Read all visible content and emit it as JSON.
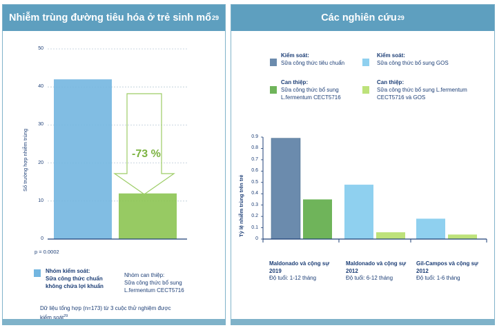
{
  "left_panel": {
    "title": "Nhiễm trùng đường tiêu hóa ở trẻ sinh mổ",
    "title_ref": "29",
    "y_axis_label": "Số trường hợp nhiễm trùng",
    "reduction_label": "-73 %",
    "p_value": "p = 0.0002",
    "legend": {
      "control_title": "Nhóm kiểm soát:",
      "control_desc": "Sữa công thức chuẩn không chứa lợi khuẩn",
      "intervention_title": "Nhóm can thiệp:",
      "intervention_desc": "Sữa công thức bổ sung L.fermentum CECT5716"
    },
    "footnote": "Dữ liệu tổng hợp (n=173) từ 3 cuộc thử nghiệm được kiểm soát",
    "footnote_ref": "29"
  },
  "right_panel": {
    "title": "Các nghiên cứu",
    "title_ref": "29",
    "y_axis_label": "Tỷ lệ nhiễm trùng trên trẻ",
    "legend": [
      {
        "title": "Kiểm soát:",
        "desc": "Sữa công thức tiêu chuẩn",
        "color": "#6b8bad"
      },
      {
        "title": "Kiểm soát:",
        "desc": "Sữa công thức bổ sung GOS",
        "color": "#8fd0ef"
      },
      {
        "title": "Can thiệp:",
        "desc": "Sữa công thức bổ sung L.fermentum CECT5716",
        "color": "#6fb45a"
      },
      {
        "title": "Can thiệp:",
        "desc": "Sữa công thức bổ sung L.fermentum CECT5716 và GOS",
        "color": "#bde27a"
      }
    ],
    "groups": [
      {
        "study": "Maldonado và cộng sự 2019",
        "age": "Độ tuổi: 1-12 tháng"
      },
      {
        "study": "Maldonado và cộng sự 2012",
        "age": "Độ tuổi: 6-12 tháng"
      },
      {
        "study": "Gil-Campos và cộng sự 2012",
        "age": "Độ tuổi: 1-6 tháng"
      }
    ]
  },
  "chart_data": [
    {
      "type": "bar",
      "title": "Nhiễm trùng đường tiêu hóa ở trẻ sinh mổ",
      "ylabel": "Số trường hợp nhiễm trùng",
      "categories": [
        "Nhóm kiểm soát",
        "Nhóm can thiệp"
      ],
      "values": [
        42,
        12
      ],
      "colors": [
        "#73b6e0",
        "#8cc452"
      ],
      "ylim": [
        0,
        50
      ],
      "yticks": [
        0,
        10,
        20,
        30,
        40,
        50
      ],
      "annotation": "-73 %",
      "grid": true
    },
    {
      "type": "bar",
      "title": "Các nghiên cứu",
      "ylabel": "Tỷ lệ nhiễm trùng trên trẻ",
      "categories": [
        "Maldonado và cộng sự 2019",
        "Maldonado và cộng sự 2012",
        "Gil-Campos và cộng sự 2012"
      ],
      "bars": [
        {
          "group": 0,
          "series": 0,
          "value": 0.89,
          "color": "#6b8bad"
        },
        {
          "group": 0,
          "series": 2,
          "value": 0.35,
          "color": "#6fb45a"
        },
        {
          "group": 1,
          "series": 1,
          "value": 0.48,
          "color": "#8fd0ef"
        },
        {
          "group": 1,
          "series": 3,
          "value": 0.06,
          "color": "#bde27a"
        },
        {
          "group": 2,
          "series": 1,
          "value": 0.18,
          "color": "#8fd0ef"
        },
        {
          "group": 2,
          "series": 3,
          "value": 0.04,
          "color": "#bde27a"
        }
      ],
      "ylim": [
        0,
        0.9
      ],
      "yticks": [
        "0",
        "0.1",
        "0.2",
        "0.3",
        "0.4",
        "0.5",
        "0.6",
        "0.7",
        "0.8",
        "0.9"
      ],
      "grid": false,
      "legend_position": "top"
    }
  ]
}
